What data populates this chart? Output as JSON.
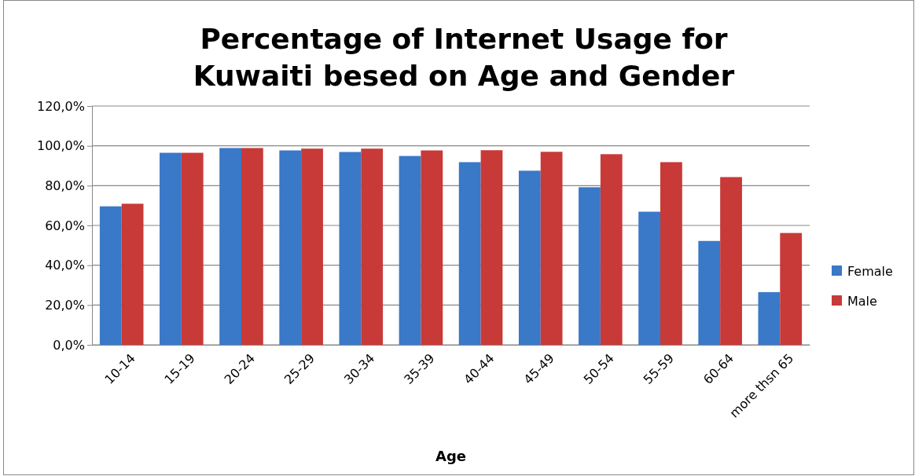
{
  "chart_data": {
    "type": "bar",
    "title": "Percentage of Internet Usage for Kuwaiti besed on Age and Gender",
    "xlabel": "Age",
    "categories": [
      "10-14",
      "15-19",
      "20-24",
      "25-29",
      "30-34",
      "35-39",
      "40-44",
      "45-49",
      "50-54",
      "55-59",
      "60-64",
      "more thsn 65"
    ],
    "series": [
      {
        "name": "Female",
        "color": "#3a78c8",
        "values": [
          69.6,
          96.5,
          98.9,
          97.7,
          96.9,
          94.9,
          91.8,
          87.5,
          79.2,
          66.9,
          52.2,
          26.5
        ]
      },
      {
        "name": "Male",
        "color": "#c83a37",
        "values": [
          70.9,
          96.5,
          98.9,
          98.6,
          98.6,
          97.7,
          97.8,
          97,
          95.8,
          91.8,
          84.3,
          56.2
        ]
      }
    ],
    "ylim": [
      0,
      120
    ],
    "yticks": [
      {
        "value": 0,
        "label": "0,0%"
      },
      {
        "value": 20,
        "label": "20,0%"
      },
      {
        "value": 40,
        "label": "40,0%"
      },
      {
        "value": 60,
        "label": "60,0%"
      },
      {
        "value": 80,
        "label": "80,0%"
      },
      {
        "value": 100,
        "label": "100,0%"
      },
      {
        "value": 120,
        "label": "120,0%"
      }
    ],
    "grid": "y",
    "legend": "right"
  }
}
